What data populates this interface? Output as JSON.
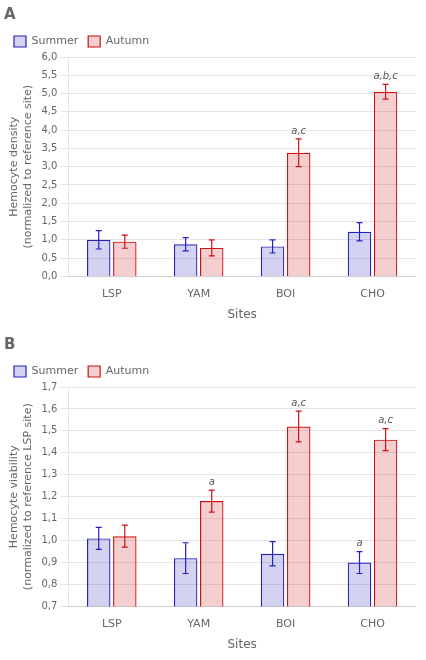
{
  "chart_data": [
    {
      "type": "bar",
      "title": "A",
      "y_label": "Hemocyte density\n(normalized to reference site)",
      "x_label": "Sites",
      "categories": [
        "LSP",
        "YAM",
        "BOI",
        "CHO"
      ],
      "series": [
        {
          "name": "Summer",
          "color": "#2222bb",
          "values": [
            1.0,
            0.88,
            0.82,
            1.22
          ],
          "errors": [
            0.25,
            0.18,
            0.18,
            0.25
          ]
        },
        {
          "name": "Autumn",
          "color": "#cc1111",
          "values": [
            0.95,
            0.78,
            3.38,
            5.05
          ],
          "errors": [
            0.18,
            0.22,
            0.38,
            0.2
          ]
        }
      ],
      "annotations": [
        {
          "series": "Autumn",
          "category": "BOI",
          "text": "a,c"
        },
        {
          "series": "Autumn",
          "category": "CHO",
          "text": "a,b,c"
        }
      ],
      "ylim": [
        0.0,
        6.0
      ],
      "yticks": [
        {
          "value": 0.0,
          "label": "0,0"
        },
        {
          "value": 0.5,
          "label": "0,5"
        },
        {
          "value": 1.0,
          "label": "1,0"
        },
        {
          "value": 1.5,
          "label": "1,5"
        },
        {
          "value": 2.0,
          "label": "2,0"
        },
        {
          "value": 2.5,
          "label": "2,5"
        },
        {
          "value": 3.0,
          "label": "3,0"
        },
        {
          "value": 3.5,
          "label": "3,5"
        },
        {
          "value": 4.0,
          "label": "4,0"
        },
        {
          "value": 4.5,
          "label": "4,5"
        },
        {
          "value": 5.0,
          "label": "5,0"
        },
        {
          "value": 5.5,
          "label": "5,5"
        },
        {
          "value": 6.0,
          "label": "6,0"
        }
      ],
      "grid": true,
      "legend": "upper left"
    },
    {
      "type": "bar",
      "title": "B",
      "y_label": "Hemocyte viability\n(normalized to reference LSP site)",
      "x_label": "Sites",
      "categories": [
        "LSP",
        "YAM",
        "BOI",
        "CHO"
      ],
      "series": [
        {
          "name": "Summer",
          "color": "#2222bb",
          "values": [
            1.01,
            0.92,
            0.94,
            0.9
          ],
          "errors": [
            0.05,
            0.07,
            0.055,
            0.05
          ]
        },
        {
          "name": "Autumn",
          "color": "#cc1111",
          "values": [
            1.02,
            1.18,
            1.52,
            1.46
          ],
          "errors": [
            0.05,
            0.05,
            0.07,
            0.05
          ]
        }
      ],
      "annotations": [
        {
          "series": "Autumn",
          "category": "YAM",
          "text": "a"
        },
        {
          "series": "Autumn",
          "category": "BOI",
          "text": "a,c"
        },
        {
          "series": "Autumn",
          "category": "CHO",
          "text": "a,c"
        },
        {
          "series": "Summer",
          "category": "CHO",
          "text": "a"
        }
      ],
      "ylim": [
        0.7,
        1.7
      ],
      "yticks": [
        {
          "value": 0.7,
          "label": "0,7"
        },
        {
          "value": 0.8,
          "label": "0,8"
        },
        {
          "value": 0.9,
          "label": "0,9"
        },
        {
          "value": 1.0,
          "label": "1,0"
        },
        {
          "value": 1.1,
          "label": "1,1"
        },
        {
          "value": 1.2,
          "label": "1,2"
        },
        {
          "value": 1.3,
          "label": "1,3"
        },
        {
          "value": 1.4,
          "label": "1,4"
        },
        {
          "value": 1.5,
          "label": "1,5"
        },
        {
          "value": 1.6,
          "label": "1,6"
        },
        {
          "value": 1.7,
          "label": "1,7"
        }
      ],
      "grid": true,
      "legend": "upper left"
    }
  ]
}
